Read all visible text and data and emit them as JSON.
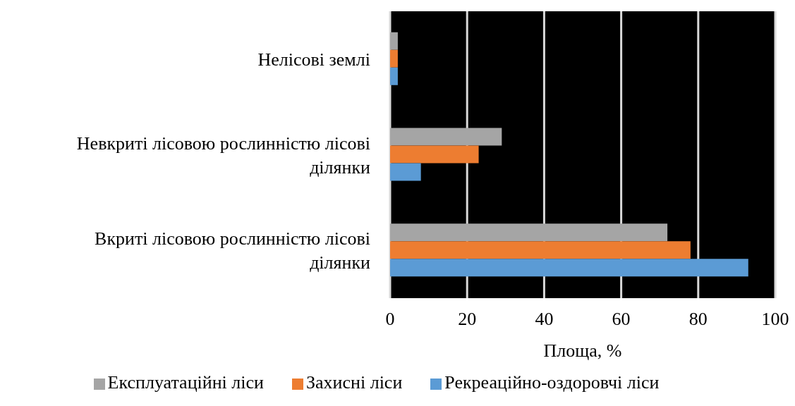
{
  "chart_data": {
    "type": "bar",
    "orientation": "horizontal",
    "categories": [
      "Нелісові землі",
      "Невкриті лісовою рослинністю лісові ділянки",
      "Вкриті лісовою рослинністю лісові ділянки"
    ],
    "series": [
      {
        "name": "Експлуатаційні ліси",
        "color": "#a5a5a5",
        "values": [
          2,
          29,
          72
        ]
      },
      {
        "name": "Захисні ліси",
        "color": "#ed7d31",
        "values": [
          2,
          23,
          78
        ]
      },
      {
        "name": "Рекреаційно-оздоровчі ліси",
        "color": "#5b9bd5",
        "values": [
          2,
          8,
          93
        ]
      }
    ],
    "xlabel": "Площа, %",
    "xlim": [
      0,
      100
    ],
    "xticks": [
      0,
      20,
      40,
      60,
      80,
      100
    ],
    "grid": "x",
    "legend": "bottom"
  }
}
